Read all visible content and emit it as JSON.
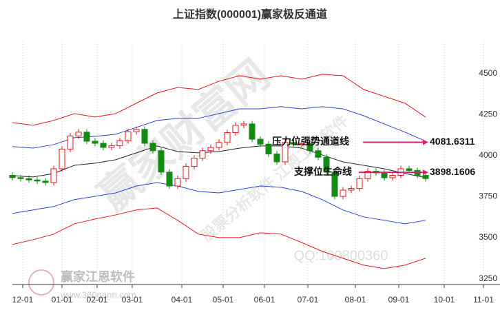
{
  "chart_data": {
    "type": "candlestick",
    "title": "上证指数(000001)赢家极反通道",
    "xlim": [
      0,
      236
    ],
    "xticks": [
      {
        "value": 5,
        "label": "12-01"
      },
      {
        "value": 24,
        "label": "01-01"
      },
      {
        "value": 41,
        "label": "02-01"
      },
      {
        "value": 58,
        "label": "03-01"
      },
      {
        "value": 82,
        "label": "04-01"
      },
      {
        "value": 102,
        "label": "05-01"
      },
      {
        "value": 122,
        "label": "06-01"
      },
      {
        "value": 143,
        "label": "07-01"
      },
      {
        "value": 166,
        "label": "08-01"
      },
      {
        "value": 187,
        "label": "09-01"
      },
      {
        "value": 209,
        "label": "10-01"
      },
      {
        "value": 228,
        "label": "11-01"
      }
    ],
    "ylim": [
      3215,
      4822
    ],
    "yticks": [
      3250,
      3500,
      3750,
      4000,
      4250,
      4500
    ],
    "up_color": "#e8141c",
    "down_color": "#138a13",
    "x": [
      0,
      4,
      8,
      12,
      16,
      20,
      24,
      28,
      32,
      36,
      40,
      44,
      48,
      52,
      56,
      60,
      64,
      68,
      72,
      76,
      80,
      84,
      88,
      92,
      96,
      100,
      104,
      108,
      112,
      116,
      120,
      124,
      128,
      132,
      136,
      140,
      144,
      148,
      152,
      156,
      160,
      164,
      168,
      172,
      176,
      180,
      184,
      188,
      192,
      196,
      200
    ],
    "open": [
      3880,
      3866,
      3860,
      3852,
      3845,
      3836,
      3920,
      4040,
      4120,
      4143,
      4088,
      4075,
      4050,
      4060,
      4090,
      4145,
      4160,
      4075,
      4030,
      3900,
      3815,
      3860,
      3935,
      3985,
      4030,
      4050,
      4080,
      4140,
      4185,
      4193,
      4100,
      4070,
      4010,
      3962,
      4080,
      4070,
      4075,
      4030,
      3990,
      3900,
      3752,
      3790,
      3800,
      3860,
      3905,
      3895,
      3865,
      3880,
      3920,
      3910,
      3880
    ],
    "high": [
      3898,
      3884,
      3878,
      3870,
      3863,
      3938,
      4058,
      4138,
      4161,
      4161,
      4106,
      4093,
      4078,
      4108,
      4163,
      4178,
      4178,
      4093,
      4048,
      3918,
      3878,
      3953,
      4003,
      4048,
      4068,
      4098,
      4158,
      4203,
      4211,
      4211,
      4118,
      4088,
      4028,
      4098,
      4098,
      4093,
      4093,
      4048,
      4008,
      3918,
      3808,
      3818,
      3878,
      3923,
      3923,
      3913,
      3898,
      3938,
      3938,
      3928,
      3898
    ],
    "low": [
      3848,
      3842,
      3834,
      3827,
      3818,
      3818,
      3902,
      4022,
      4102,
      4070,
      4057,
      4032,
      4032,
      4042,
      4072,
      4127,
      4057,
      4012,
      3882,
      3797,
      3797,
      3842,
      3917,
      3967,
      4012,
      4032,
      4062,
      4122,
      4167,
      4082,
      4052,
      3992,
      3944,
      3944,
      4052,
      4052,
      4012,
      3972,
      3882,
      3734,
      3734,
      3772,
      3782,
      3842,
      3877,
      3847,
      3847,
      3862,
      3892,
      3862,
      3842
    ],
    "close": [
      3866,
      3860,
      3852,
      3845,
      3836,
      3920,
      4040,
      4120,
      4143,
      4088,
      4075,
      4050,
      4060,
      4090,
      4145,
      4160,
      4075,
      4030,
      3900,
      3815,
      3860,
      3935,
      3985,
      4030,
      4050,
      4080,
      4140,
      4185,
      4193,
      4100,
      4070,
      4010,
      3962,
      4080,
      4070,
      4075,
      4030,
      3990,
      3900,
      3752,
      3790,
      3800,
      3860,
      3905,
      3895,
      3865,
      3880,
      3920,
      3910,
      3880,
      3860
    ],
    "band_x": [
      0,
      10,
      20,
      30,
      40,
      50,
      60,
      70,
      80,
      90,
      100,
      110,
      120,
      130,
      140,
      150,
      160,
      170,
      180,
      190,
      200
    ],
    "bands": [
      {
        "color": "#e8141c",
        "values": [
          4201,
          4185,
          4214,
          4256,
          4235,
          4256,
          4319,
          4382,
          4415,
          4403,
          4453,
          4487,
          4466,
          4487,
          4466,
          4495,
          4487,
          4403,
          4361,
          4319,
          4235
        ]
      },
      {
        "color": "#2b3fd6",
        "values": [
          4055,
          4046,
          4067,
          4109,
          4117,
          4130,
          4172,
          4214,
          4227,
          4227,
          4256,
          4285,
          4285,
          4298,
          4285,
          4298,
          4285,
          4243,
          4193,
          4143,
          4088
        ]
      },
      {
        "color": "#222222",
        "values": [
          3878,
          3870,
          3891,
          3941,
          3954,
          3975,
          4017,
          4059,
          4025,
          4017,
          4025,
          4046,
          4059,
          4059,
          4046,
          4004,
          3962,
          3941,
          3920,
          3891,
          3866
        ]
      },
      {
        "color": "#2b3fd6",
        "values": [
          3648,
          3669,
          3690,
          3732,
          3752,
          3773,
          3815,
          3836,
          3815,
          3782,
          3773,
          3794,
          3815,
          3807,
          3782,
          3732,
          3669,
          3627,
          3606,
          3585,
          3606
        ]
      },
      {
        "color": "#e8141c",
        "values": [
          3459,
          3488,
          3522,
          3585,
          3614,
          3639,
          3669,
          3681,
          3606,
          3522,
          3501,
          3501,
          3530,
          3522,
          3471,
          3417,
          3375,
          3333,
          3312,
          3333,
          3375
        ]
      }
    ],
    "annotations": [
      {
        "text": "压力位强势通道线",
        "value": 4081.6311,
        "value_label": "4081.6311",
        "color": "#e0206e"
      },
      {
        "text": "支撑位生命线",
        "value": 3898.1606,
        "value_label": "3898.1606",
        "color": "#e0206e"
      }
    ],
    "grid": true,
    "watermarks": {
      "logo": "赢家江恩软件",
      "site": "www.360gann.com",
      "qq": "QQ:100800360",
      "big": "赢家财富网",
      "diag": "股票分析软件 江恩工具软件"
    }
  }
}
